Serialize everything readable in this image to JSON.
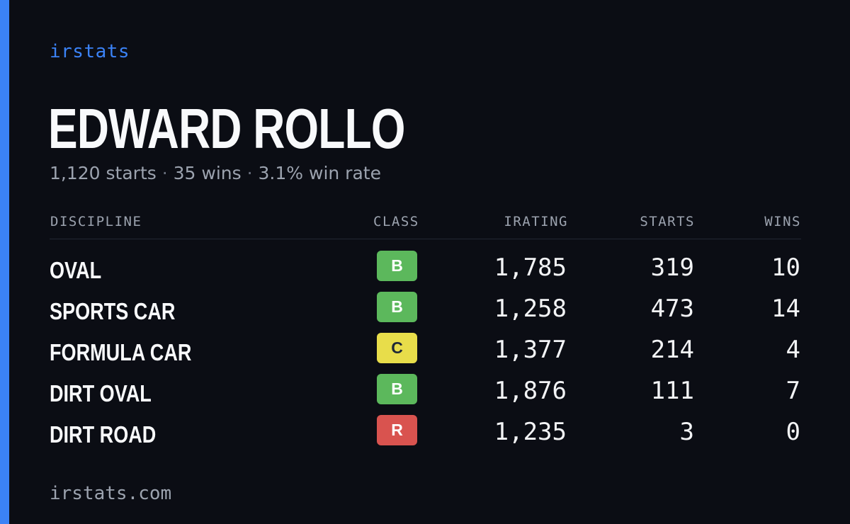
{
  "brand": "irstats",
  "driver": {
    "name": "EDWARD ROLLO",
    "starts": "1,120 starts",
    "wins": "35 wins",
    "win_rate": "3.1% win rate",
    "separator": "·"
  },
  "table": {
    "headers": {
      "discipline": "DISCIPLINE",
      "class": "CLASS",
      "irating": "IRATING",
      "starts": "STARTS",
      "wins": "WINS"
    },
    "rows": [
      {
        "discipline": "OVAL",
        "class": "B",
        "irating": "1,785",
        "starts": "319",
        "wins": "10"
      },
      {
        "discipline": "SPORTS CAR",
        "class": "B",
        "irating": "1,258",
        "starts": "473",
        "wins": "14"
      },
      {
        "discipline": "FORMULA CAR",
        "class": "C",
        "irating": "1,377",
        "starts": "214",
        "wins": "4"
      },
      {
        "discipline": "DIRT OVAL",
        "class": "B",
        "irating": "1,876",
        "starts": "111",
        "wins": "7"
      },
      {
        "discipline": "DIRT ROAD",
        "class": "R",
        "irating": "1,235",
        "starts": "3",
        "wins": "0"
      }
    ]
  },
  "colors": {
    "accent": "#3b82f6",
    "background": "#0b0d14",
    "class_B": "#5cb85c",
    "class_C": "#e8dd4a",
    "class_R": "#d9534f"
  },
  "footer": "irstats.com"
}
